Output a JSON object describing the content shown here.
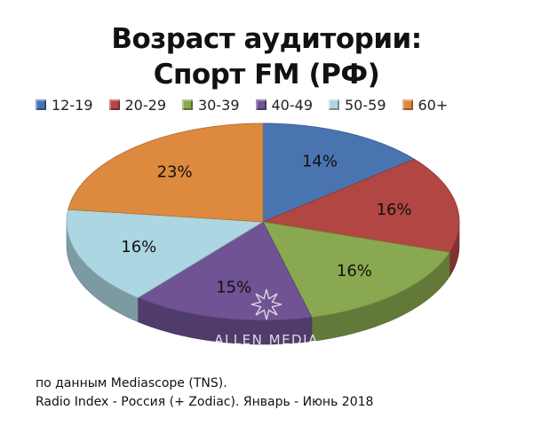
{
  "chart_data": {
    "type": "pie",
    "title_line1": "Возраст аудитории:",
    "title_line2": "Спорт FM (РФ)",
    "legend_position": "top",
    "categories": [
      "12-19",
      "20-29",
      "30-39",
      "40-49",
      "50-59",
      "60+"
    ],
    "values": [
      14,
      16,
      16,
      15,
      16,
      23
    ],
    "labels": [
      "14%",
      "16%",
      "16%",
      "15%",
      "16%",
      "23%"
    ],
    "colors": [
      "#4a74b0",
      "#b14643",
      "#8aa84f",
      "#6f5394",
      "#acd6e1",
      "#dd8a3e"
    ],
    "style": "3d"
  },
  "watermark": {
    "text": "ALLEN MEDIA",
    "icon": "star-burst-icon"
  },
  "source": {
    "line1": "по данным Mediascope (TNS).",
    "line2": "Radio Index - Россия (+ Zodiac). Январь - Июнь 2018"
  }
}
